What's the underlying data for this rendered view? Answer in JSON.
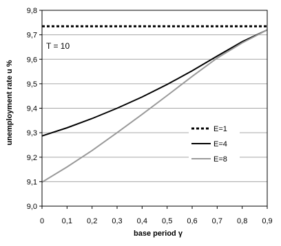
{
  "chart_data": {
    "type": "line",
    "x": [
      0,
      0.1,
      0.2,
      0.3,
      0.4,
      0.5,
      0.6,
      0.7,
      0.8,
      0.9
    ],
    "series": [
      {
        "name": "E=1",
        "values": [
          9.735,
          9.735,
          9.735,
          9.735,
          9.735,
          9.735,
          9.735,
          9.735,
          9.735,
          9.735
        ],
        "color": "#000000",
        "style": "dotted"
      },
      {
        "name": "E=4",
        "values": [
          9.287,
          9.32,
          9.358,
          9.4,
          9.446,
          9.497,
          9.553,
          9.613,
          9.672,
          9.72
        ],
        "color": "#000000",
        "style": "solid"
      },
      {
        "name": "E=8",
        "values": [
          9.098,
          9.16,
          9.227,
          9.3,
          9.375,
          9.452,
          9.53,
          9.605,
          9.667,
          9.72
        ],
        "color": "#999999",
        "style": "solid"
      }
    ],
    "xlabel": "base period γ",
    "ylabel": "unemployment rate u %",
    "xlim": [
      0,
      0.9
    ],
    "ylim": [
      9.0,
      9.8
    ],
    "x_ticks": [
      "0",
      "0,1",
      "0,2",
      "0,3",
      "0,4",
      "0,5",
      "0,6",
      "0,7",
      "0,8",
      "0,9"
    ],
    "y_ticks": [
      "9,0",
      "9,1",
      "9,2",
      "9,3",
      "9,4",
      "9,5",
      "9,6",
      "9,7",
      "9,8"
    ],
    "annotation": "T = 10",
    "grid": "horizontal",
    "legend_position": "right"
  }
}
